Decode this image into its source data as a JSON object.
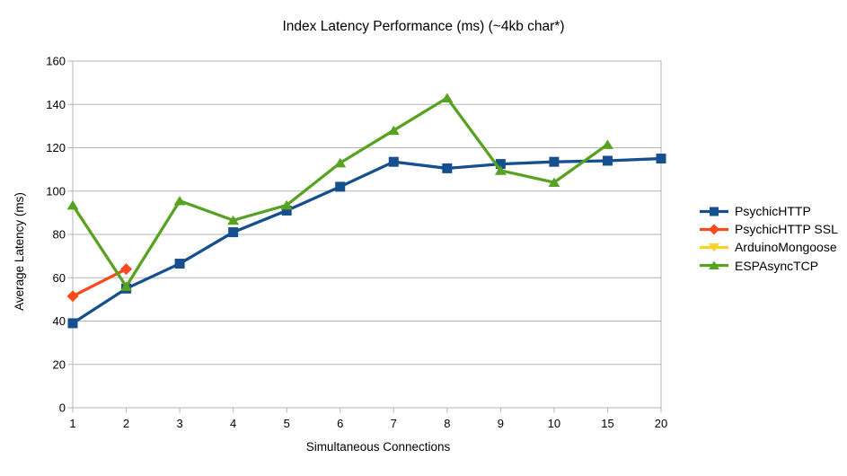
{
  "chart_data": {
    "type": "line",
    "title": "Index Latency Performance (ms) (~4kb char*)",
    "xlabel": "Simultaneous Connections",
    "ylabel": "Average Latency (ms)",
    "categories": [
      "1",
      "2",
      "3",
      "4",
      "5",
      "6",
      "7",
      "8",
      "9",
      "10",
      "15",
      "20"
    ],
    "ylim": [
      0,
      160
    ],
    "ytick_step": 20,
    "grid": "horizontal",
    "legend_position": "right",
    "series": [
      {
        "name": "PsychicHTTP",
        "color": "#164F8D",
        "marker": "square",
        "values": [
          39,
          55,
          66.5,
          81,
          91,
          102,
          113.5,
          110.5,
          112.5,
          113.5,
          114,
          115
        ]
      },
      {
        "name": "PsychicHTTP SSL",
        "color": "#F94A1D",
        "marker": "diamond",
        "values": [
          51.5,
          64,
          null,
          null,
          null,
          null,
          null,
          null,
          null,
          null,
          null,
          null
        ]
      },
      {
        "name": "ArduinoMongoose",
        "color": "#FCD12C",
        "marker": "triangle-down",
        "values": [
          null,
          null,
          null,
          null,
          null,
          null,
          null,
          null,
          null,
          null,
          null,
          null
        ]
      },
      {
        "name": "ESPAsyncTCP",
        "color": "#58A222",
        "marker": "triangle-up",
        "values": [
          93.5,
          56,
          95.5,
          86.5,
          93.5,
          113,
          128,
          143,
          109.5,
          104,
          121.5,
          null
        ]
      }
    ]
  },
  "colors": {
    "grid": "#b5b5b5",
    "axis": "#b5b5b5",
    "text": "#000000",
    "background": "#ffffff"
  }
}
